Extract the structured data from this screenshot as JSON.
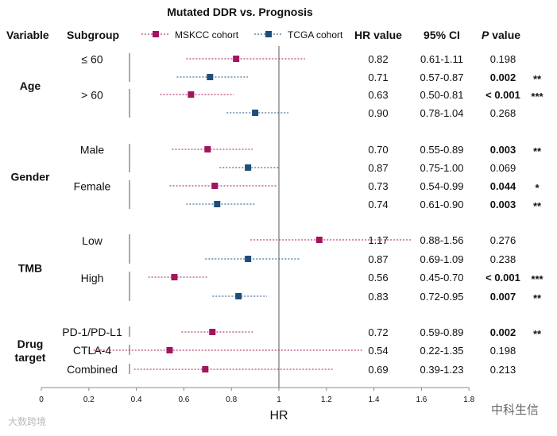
{
  "chart_data": {
    "type": "forest",
    "title": "Mutated DDR vs. Prognosis",
    "xlabel": "HR",
    "xlim": [
      0,
      1.8
    ],
    "xticks": [
      "0",
      "0.2",
      "0.4",
      "0.6",
      "0.8",
      "1",
      "1.2",
      "1.4",
      "1.6",
      "1.8"
    ],
    "reference_line": 1,
    "headers": {
      "variable": "Variable",
      "subgroup": "Subgroup",
      "hr": "HR value",
      "ci": "95% CI",
      "p_italic": "P",
      "p_rest": " value"
    },
    "legend": [
      {
        "name": "MSKCC cohort",
        "color": "#a3145e"
      },
      {
        "name": "TCGA cohort",
        "color": "#1f4e7a"
      }
    ],
    "groups": [
      {
        "label": [
          "Age"
        ],
        "subgroups": [
          "≤ 60",
          "> 60"
        ]
      },
      {
        "label": [
          "Gender"
        ],
        "subgroups": [
          "Male",
          "Female"
        ]
      },
      {
        "label": [
          "TMB"
        ],
        "subgroups": [
          "Low",
          "High"
        ]
      },
      {
        "label": [
          "Drug",
          "target"
        ],
        "subgroups": [
          "PD-1/PD-L1",
          "CTLA-4",
          "Combined"
        ]
      }
    ],
    "rows": [
      {
        "cohort": 0,
        "hr": 0.82,
        "lo": 0.61,
        "hi": 1.11,
        "hr_text": "0.82",
        "ci_text": "0.61-1.11",
        "p": "0.198",
        "bold": false,
        "stars": ""
      },
      {
        "cohort": 1,
        "hr": 0.71,
        "lo": 0.57,
        "hi": 0.87,
        "hr_text": "0.71",
        "ci_text": "0.57-0.87",
        "p": "0.002",
        "bold": true,
        "stars": "**"
      },
      {
        "cohort": 0,
        "hr": 0.63,
        "lo": 0.5,
        "hi": 0.81,
        "hr_text": "0.63",
        "ci_text": "0.50-0.81",
        "p": "< 0.001",
        "bold": true,
        "stars": "***"
      },
      {
        "cohort": 1,
        "hr": 0.9,
        "lo": 0.78,
        "hi": 1.04,
        "hr_text": "0.90",
        "ci_text": "0.78-1.04",
        "p": "0.268",
        "bold": false,
        "stars": ""
      },
      {
        "cohort": 0,
        "hr": 0.7,
        "lo": 0.55,
        "hi": 0.89,
        "hr_text": "0.70",
        "ci_text": "0.55-0.89",
        "p": "0.003",
        "bold": true,
        "stars": "**"
      },
      {
        "cohort": 1,
        "hr": 0.87,
        "lo": 0.75,
        "hi": 1.0,
        "hr_text": "0.87",
        "ci_text": "0.75-1.00",
        "p": "0.069",
        "bold": false,
        "stars": ""
      },
      {
        "cohort": 0,
        "hr": 0.73,
        "lo": 0.54,
        "hi": 0.99,
        "hr_text": "0.73",
        "ci_text": "0.54-0.99",
        "p": "0.044",
        "bold": true,
        "stars": "*"
      },
      {
        "cohort": 1,
        "hr": 0.74,
        "lo": 0.61,
        "hi": 0.9,
        "hr_text": "0.74",
        "ci_text": "0.61-0.90",
        "p": "0.003",
        "bold": true,
        "stars": "**"
      },
      {
        "cohort": 0,
        "hr": 1.17,
        "lo": 0.88,
        "hi": 1.56,
        "hr_text": "1.17",
        "ci_text": "0.88-1.56",
        "p": "0.276",
        "bold": false,
        "stars": ""
      },
      {
        "cohort": 1,
        "hr": 0.87,
        "lo": 0.69,
        "hi": 1.09,
        "hr_text": "0.87",
        "ci_text": "0.69-1.09",
        "p": "0.238",
        "bold": false,
        "stars": ""
      },
      {
        "cohort": 0,
        "hr": 0.56,
        "lo": 0.45,
        "hi": 0.7,
        "hr_text": "0.56",
        "ci_text": "0.45-0.70",
        "p": "< 0.001",
        "bold": true,
        "stars": "***"
      },
      {
        "cohort": 1,
        "hr": 0.83,
        "lo": 0.72,
        "hi": 0.95,
        "hr_text": "0.83",
        "ci_text": "0.72-0.95",
        "p": "0.007",
        "bold": true,
        "stars": "**"
      },
      {
        "cohort": 0,
        "hr": 0.72,
        "lo": 0.59,
        "hi": 0.89,
        "hr_text": "0.72",
        "ci_text": "0.59-0.89",
        "p": "0.002",
        "bold": true,
        "stars": "**"
      },
      {
        "cohort": 0,
        "hr": 0.54,
        "lo": 0.22,
        "hi": 1.35,
        "hr_text": "0.54",
        "ci_text": "0.22-1.35",
        "p": "0.198",
        "bold": false,
        "stars": ""
      },
      {
        "cohort": 0,
        "hr": 0.69,
        "lo": 0.39,
        "hi": 1.23,
        "hr_text": "0.69",
        "ci_text": "0.39-1.23",
        "p": "0.213",
        "bold": false,
        "stars": ""
      }
    ]
  },
  "watermarks": {
    "left": "大数跨境",
    "right": "中科生信"
  }
}
